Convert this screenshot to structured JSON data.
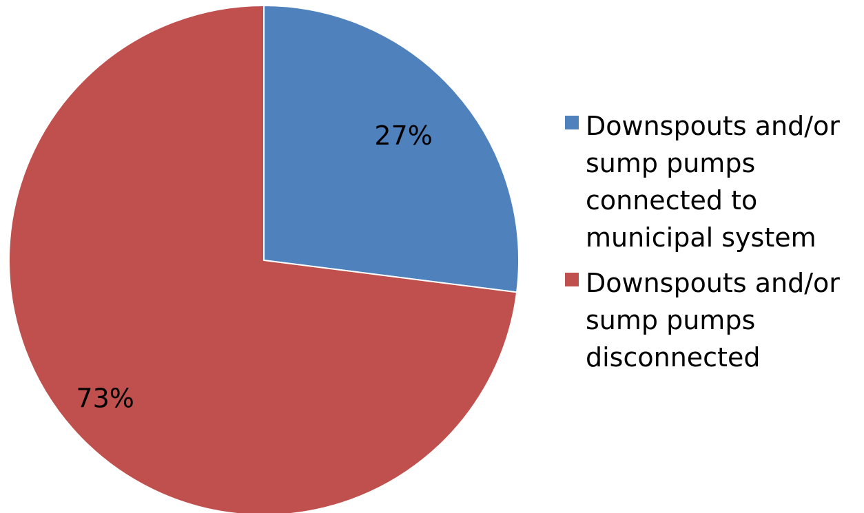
{
  "chart_data": {
    "type": "pie",
    "title": "",
    "series": [
      {
        "name": "Downspouts and/or sump pumps connected to municipal system",
        "value": 27,
        "label": "27%",
        "color": "#4F81BD"
      },
      {
        "name": "Downspouts and/or sump pumps disconnected",
        "value": 73,
        "label": "73%",
        "color": "#C0504D"
      }
    ],
    "start_angle": "12 o'clock",
    "direction": "clockwise",
    "legend_position": "right",
    "slice_border_color": "#FFFFFF"
  }
}
